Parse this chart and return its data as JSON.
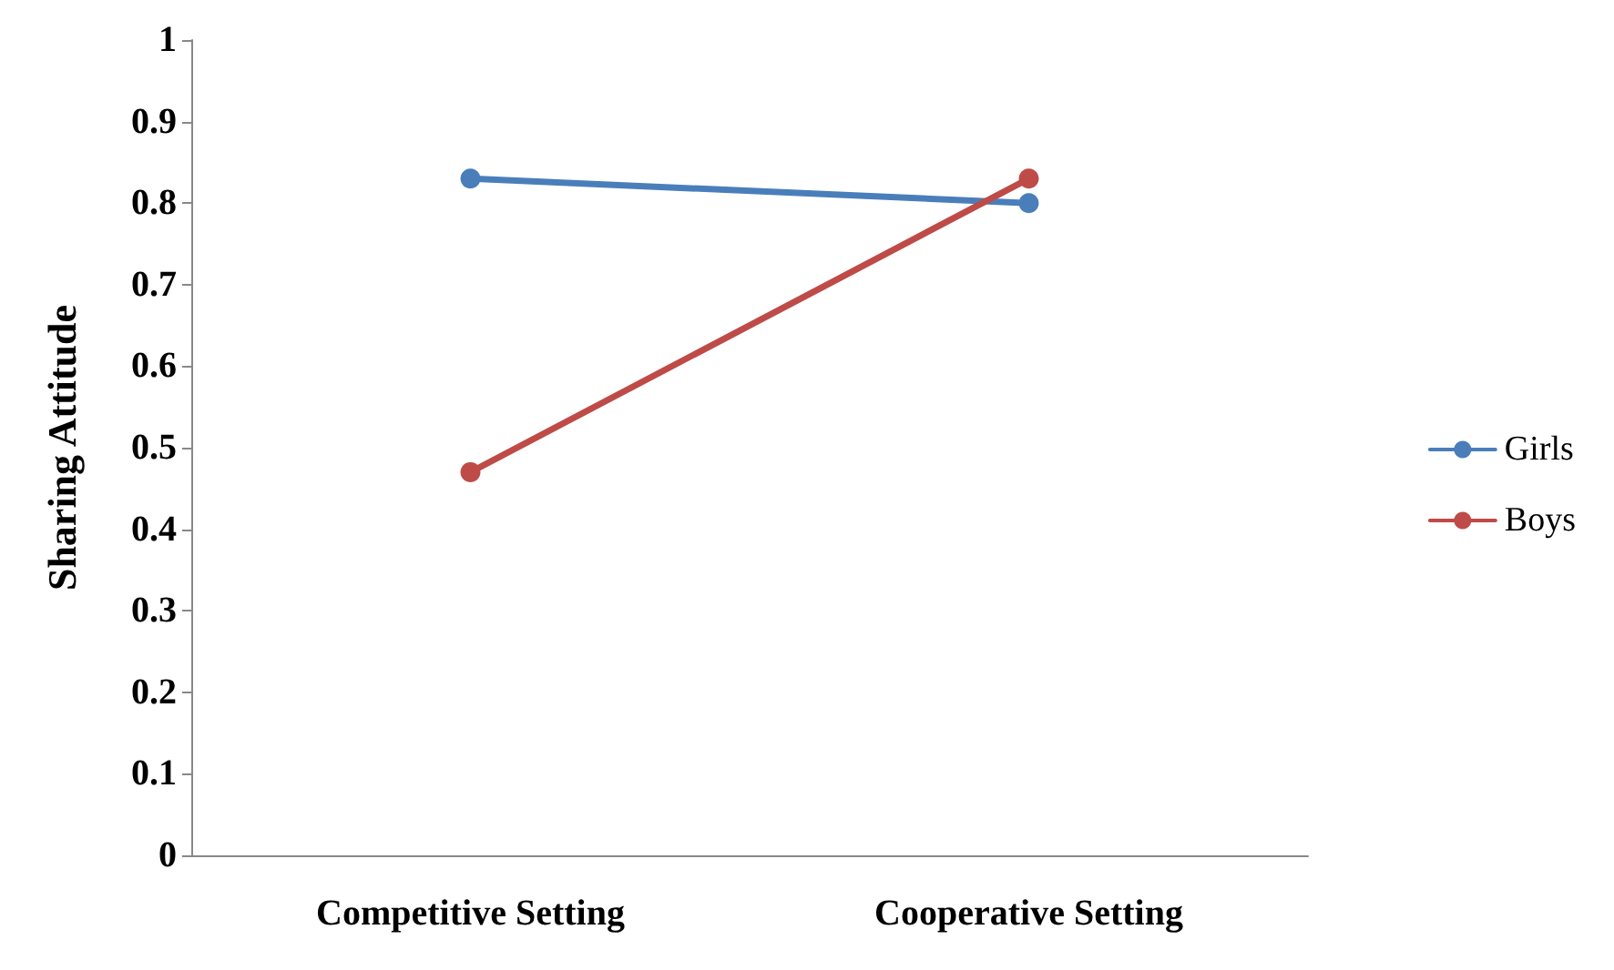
{
  "chart_data": {
    "type": "line",
    "ylabel": "Sharing Attitude",
    "categories": [
      "Competitive Setting",
      "Cooperative Setting"
    ],
    "series": [
      {
        "name": "Girls",
        "color": "#4a7ebb",
        "values": [
          0.83,
          0.8
        ]
      },
      {
        "name": "Boys",
        "color": "#be4b48",
        "values": [
          0.47,
          0.83
        ]
      }
    ],
    "ylim": [
      0,
      1
    ],
    "yticks": [
      0,
      0.1,
      0.2,
      0.3,
      0.4,
      0.5,
      0.6,
      0.7,
      0.8,
      0.9,
      1
    ],
    "grid": false,
    "legend": "right",
    "marker": "circle",
    "line_style": "solid"
  }
}
